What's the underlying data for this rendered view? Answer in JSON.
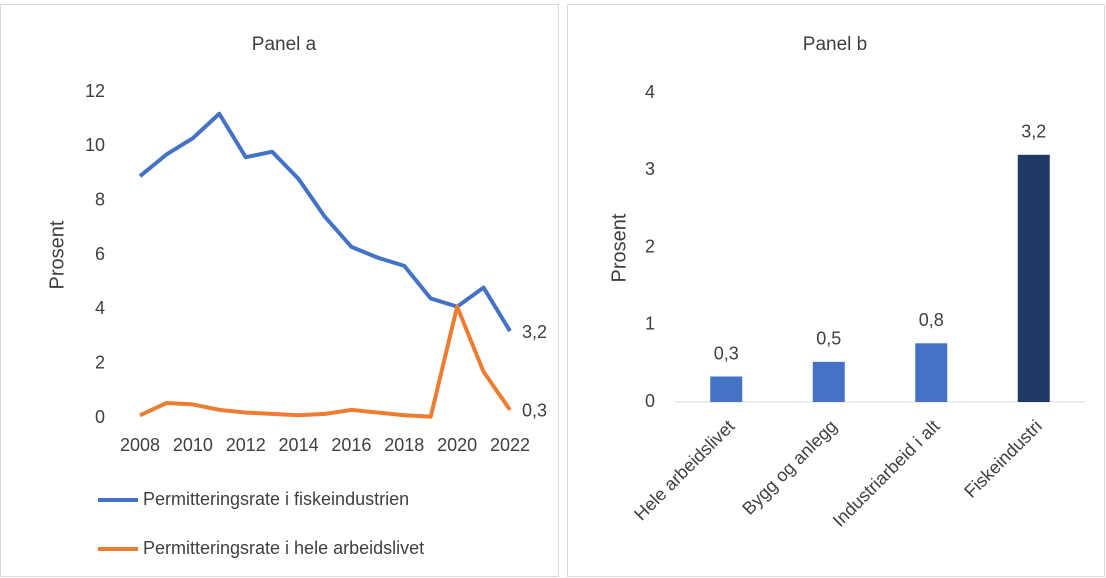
{
  "chart_data": [
    {
      "type": "line",
      "title": "Panel a",
      "y_label": "Prosent",
      "x": [
        2008,
        2009,
        2010,
        2011,
        2012,
        2013,
        2014,
        2015,
        2016,
        2017,
        2018,
        2019,
        2020,
        2021,
        2022
      ],
      "xlim": [
        2008,
        2022
      ],
      "xticks": [
        2008,
        2010,
        2012,
        2014,
        2016,
        2018,
        2020,
        2022
      ],
      "ylim": [
        0,
        12
      ],
      "yticks": [
        0,
        2,
        4,
        6,
        8,
        10,
        12
      ],
      "legend": "bottom",
      "series": [
        {
          "name": "Permitteringsrate i fiskeindustrien",
          "color": "#4472c4",
          "values": [
            8.9,
            9.7,
            10.3,
            11.2,
            9.6,
            9.8,
            8.8,
            7.4,
            6.3,
            5.9,
            5.6,
            4.4,
            4.1,
            4.8,
            3.2
          ],
          "value_labels": [
            null,
            null,
            null,
            null,
            null,
            null,
            null,
            null,
            null,
            null,
            null,
            null,
            null,
            null,
            "3,2"
          ]
        },
        {
          "name": "Permitteringsrate i hele arbeidslivet",
          "color": "#ed7d31",
          "values": [
            0.1,
            0.55,
            0.5,
            0.3,
            0.2,
            0.15,
            0.1,
            0.15,
            0.3,
            0.2,
            0.1,
            0.05,
            4.1,
            1.7,
            0.3
          ],
          "value_labels": [
            null,
            null,
            null,
            null,
            null,
            null,
            null,
            null,
            null,
            null,
            null,
            null,
            null,
            null,
            "0,3"
          ]
        }
      ]
    },
    {
      "type": "bar",
      "title": "Panel b",
      "y_label": "Prosent",
      "categories": [
        "Hele arbeidslivet",
        "Bygg og anlegg",
        "Industriarbeid i alt",
        "Fiskeindustri"
      ],
      "values": [
        0.33,
        0.52,
        0.76,
        3.2
      ],
      "value_labels": [
        "0,3",
        "0,5",
        "0,8",
        "3,2"
      ],
      "colors": [
        "#4472c4",
        "#4472c4",
        "#4472c4",
        "#1f3864"
      ],
      "ylim": [
        0,
        4
      ],
      "yticks": [
        0,
        1,
        2,
        3,
        4
      ]
    }
  ]
}
